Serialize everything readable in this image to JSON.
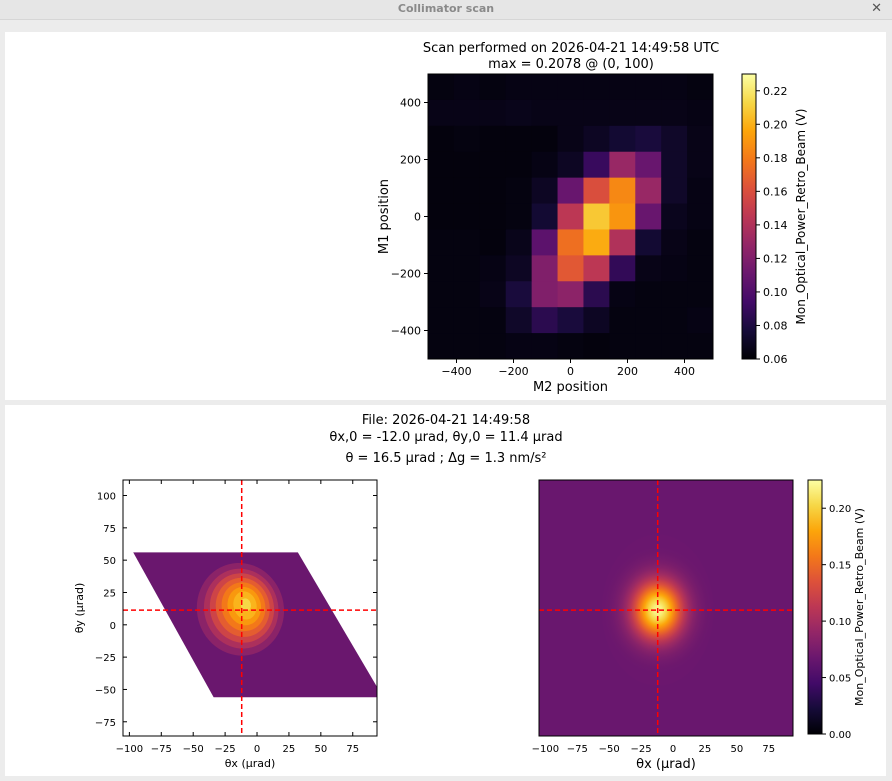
{
  "window": {
    "title": "Collimator scan",
    "close_icon": "close-icon"
  },
  "top": {
    "title_line1": "Scan performed on 2026-04-21 14:49:58 UTC",
    "title_line2": "max = 0.2078 @ (0, 100)"
  },
  "bottom": {
    "line1": "File: 2026-04-21 14:49:58",
    "line2": "θx,0 = -12.0 µrad, θy,0 = 11.4 µrad",
    "line3": "θ = 16.5 µrad ; Δg = 1.3 nm/s²"
  },
  "colormap": "inferno",
  "marker_color": "#ff0000",
  "chart_data": [
    {
      "type": "heatmap",
      "xlabel": "M2 position",
      "ylabel": "M1 position",
      "xlim": [
        -500,
        500
      ],
      "ylim": [
        -500,
        500
      ],
      "xticks": [
        -400,
        -200,
        0,
        200,
        400
      ],
      "yticks": [
        -400,
        -200,
        0,
        200,
        400
      ],
      "x": [
        -500,
        -400,
        -300,
        -200,
        -100,
        0,
        100,
        200,
        300,
        400,
        500
      ],
      "y": [
        500,
        400,
        300,
        200,
        100,
        0,
        -100,
        -200,
        -300,
        -400,
        -500
      ],
      "values": [
        [
          0.064,
          0.065,
          0.064,
          0.065,
          0.065,
          0.065,
          0.065,
          0.065,
          0.065,
          0.065,
          0.064
        ],
        [
          0.066,
          0.066,
          0.066,
          0.067,
          0.066,
          0.066,
          0.066,
          0.066,
          0.066,
          0.066,
          0.065
        ],
        [
          0.063,
          0.064,
          0.063,
          0.063,
          0.063,
          0.066,
          0.07,
          0.075,
          0.078,
          0.072,
          0.066
        ],
        [
          0.063,
          0.063,
          0.063,
          0.063,
          0.065,
          0.07,
          0.09,
          0.13,
          0.11,
          0.072,
          0.066
        ],
        [
          0.063,
          0.063,
          0.063,
          0.064,
          0.07,
          0.11,
          0.16,
          0.185,
          0.13,
          0.072,
          0.065
        ],
        [
          0.063,
          0.063,
          0.063,
          0.064,
          0.075,
          0.145,
          0.208,
          0.19,
          0.11,
          0.068,
          0.065
        ],
        [
          0.064,
          0.064,
          0.063,
          0.067,
          0.105,
          0.175,
          0.198,
          0.14,
          0.075,
          0.066,
          0.064
        ],
        [
          0.064,
          0.064,
          0.065,
          0.07,
          0.12,
          0.165,
          0.145,
          0.088,
          0.066,
          0.065,
          0.064
        ],
        [
          0.064,
          0.064,
          0.066,
          0.078,
          0.12,
          0.125,
          0.085,
          0.065,
          0.064,
          0.064,
          0.064
        ],
        [
          0.064,
          0.064,
          0.064,
          0.072,
          0.085,
          0.078,
          0.07,
          0.064,
          0.064,
          0.064,
          0.065
        ],
        [
          0.064,
          0.064,
          0.064,
          0.065,
          0.065,
          0.064,
          0.063,
          0.064,
          0.064,
          0.064,
          0.064
        ]
      ],
      "colorbar": {
        "label": "Mon_Optical_Power_Retro_Beam (V)",
        "range": [
          0.06,
          0.23
        ],
        "ticks": [
          0.06,
          0.08,
          0.1,
          0.12,
          0.14,
          0.16,
          0.18,
          0.2,
          0.22
        ]
      }
    },
    {
      "type": "contour",
      "xlabel": "θx (µrad)",
      "ylabel": "θy (µrad)",
      "xlim": [
        -105,
        94
      ],
      "ylim": [
        -86,
        112
      ],
      "xticks": [
        -100,
        -75,
        -50,
        -25,
        0,
        25,
        50,
        75
      ],
      "yticks": [
        -75,
        -50,
        -25,
        0,
        25,
        50,
        75,
        100
      ],
      "region": [
        [
          -97,
          56
        ],
        [
          32,
          56
        ],
        [
          94,
          -48
        ],
        [
          94,
          -56
        ],
        [
          -34,
          -56
        ]
      ],
      "peak": [
        -10,
        14
      ],
      "markers": {
        "x": -12.0,
        "y": 11.4
      }
    },
    {
      "type": "heatmap",
      "xlabel": "θx (µrad)",
      "xlim": [
        -105,
        94
      ],
      "ylim": [
        -86,
        112
      ],
      "xticks": [
        -100,
        -75,
        -50,
        -25,
        0,
        25,
        50,
        75
      ],
      "peak": [
        -12,
        11.4
      ],
      "markers": {
        "x": -12.0,
        "y": 11.4
      },
      "colorbar": {
        "label": "Mon_Optical_Power_Retro_Beam (V)",
        "range": [
          0.0,
          0.225
        ],
        "ticks": [
          0.0,
          0.05,
          0.1,
          0.15,
          0.2
        ]
      }
    }
  ]
}
